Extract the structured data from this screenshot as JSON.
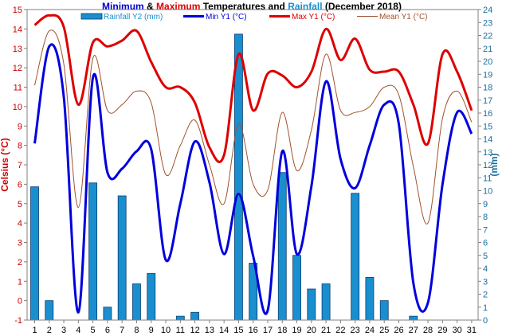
{
  "chart_data": {
    "type": "line",
    "title_parts": [
      {
        "text": "Minimum",
        "color": "#0000cc"
      },
      {
        "text": " & ",
        "color": "#000000"
      },
      {
        "text": "Maximum",
        "color": "#dd0000"
      },
      {
        "text": " Temperatures and ",
        "color": "#000000"
      },
      {
        "text": "Rainfall",
        "color": "#1a8fcf"
      },
      {
        "text": " (December 2018)",
        "color": "#000000"
      }
    ],
    "ylabel_left": "Celsius (°C)",
    "ylabel_right": "(mm)",
    "x": [
      1,
      2,
      3,
      4,
      5,
      6,
      7,
      8,
      9,
      10,
      11,
      12,
      13,
      14,
      15,
      16,
      17,
      18,
      19,
      20,
      21,
      22,
      23,
      24,
      25,
      26,
      27,
      28,
      29,
      30,
      31
    ],
    "ylim_left": [
      -1,
      15
    ],
    "ylim_right": [
      0,
      24
    ],
    "yticks_left": [
      -1,
      0,
      1,
      2,
      3,
      4,
      5,
      6,
      7,
      8,
      9,
      10,
      11,
      12,
      13,
      14,
      15
    ],
    "yticks_right": [
      0,
      1,
      2,
      3,
      4,
      5,
      6,
      7,
      8,
      9,
      10,
      11,
      12,
      13,
      14,
      15,
      16,
      17,
      18,
      19,
      20,
      21,
      22,
      23,
      24
    ],
    "grid": false,
    "legend_position": "top",
    "series": [
      {
        "name": "Rainfall Y2 (mm)",
        "kind": "bar",
        "axis": "right",
        "color": "#1a8fcf",
        "values": [
          10.3,
          1.5,
          0,
          0,
          10.6,
          1.0,
          9.6,
          2.8,
          3.6,
          0,
          0.3,
          0.6,
          0,
          0,
          22.1,
          4.4,
          0,
          11.4,
          5.0,
          2.4,
          2.8,
          0,
          9.8,
          3.3,
          1.5,
          0,
          0.3,
          0,
          0,
          0,
          0
        ]
      },
      {
        "name": "Min Y1 (°C)",
        "kind": "line",
        "axis": "left",
        "color": "#0000dd",
        "values": [
          8.1,
          13.1,
          10.5,
          -0.6,
          11.5,
          6.6,
          6.8,
          7.7,
          7.8,
          2.1,
          5.0,
          8.2,
          6.1,
          2.4,
          5.5,
          2.3,
          -0.5,
          7.7,
          2.4,
          5.9,
          11.3,
          7.3,
          5.8,
          8.0,
          10.1,
          9.1,
          0.9,
          -0.1,
          6.0,
          9.7,
          8.6
        ]
      },
      {
        "name": "Max Y1 (°C)",
        "kind": "line",
        "axis": "left",
        "color": "#dd0000",
        "values": [
          14.2,
          14.7,
          14.1,
          10.1,
          13.3,
          13.1,
          13.4,
          13.9,
          12.3,
          11.0,
          11.0,
          10.2,
          7.9,
          7.5,
          12.7,
          9.8,
          11.7,
          11.6,
          11.0,
          11.8,
          14.0,
          12.4,
          13.5,
          11.9,
          11.8,
          11.8,
          10.1,
          8.1,
          12.7,
          11.8,
          9.8
        ]
      },
      {
        "name": "Mean Y1 (°C)",
        "kind": "line",
        "axis": "left",
        "color": "#a0522d",
        "values": [
          11.1,
          13.9,
          12.2,
          4.8,
          12.5,
          9.8,
          10.1,
          10.8,
          10.2,
          6.5,
          8.0,
          9.3,
          7.0,
          5.0,
          9.1,
          6.0,
          5.7,
          9.7,
          6.7,
          8.8,
          12.7,
          9.8,
          9.7,
          10.0,
          11.0,
          10.6,
          6.9,
          4.0,
          9.4,
          10.8,
          9.2
        ]
      }
    ]
  }
}
